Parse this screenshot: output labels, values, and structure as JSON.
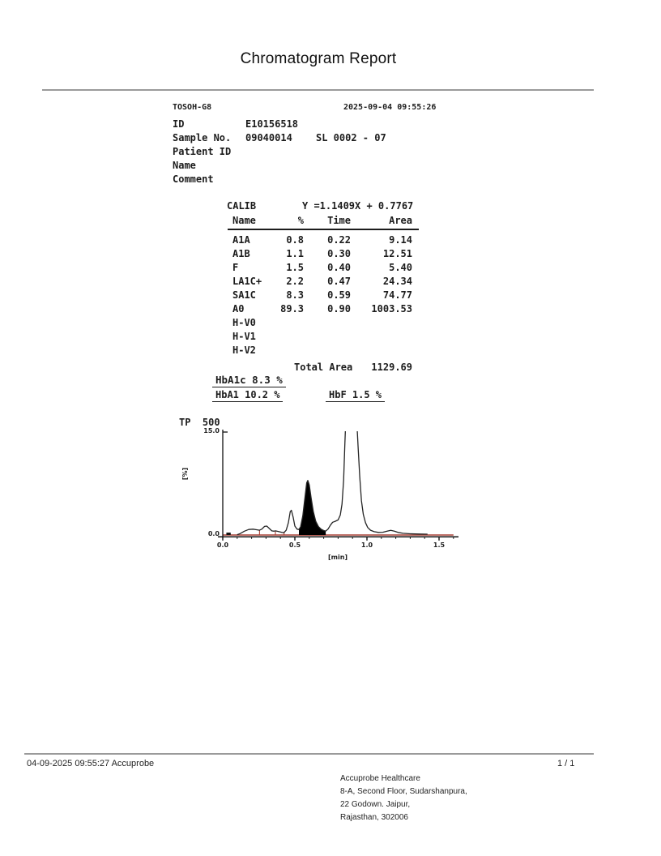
{
  "title": "Chromatogram Report",
  "instrument": {
    "model": "TOSOH-G8",
    "datetime": "2025-09-04 09:55:26",
    "fields": [
      {
        "label": "ID",
        "value": "E10156518",
        "extra": ""
      },
      {
        "label": "Sample No.",
        "value": "09040014",
        "extra": "SL 0002 - 07"
      },
      {
        "label": "Patient ID",
        "value": "",
        "extra": ""
      },
      {
        "label": "Name",
        "value": "",
        "extra": ""
      },
      {
        "label": "Comment",
        "value": "",
        "extra": ""
      }
    ]
  },
  "calib": {
    "label": "CALIB",
    "equation": "Y =1.1409X + 0.7767"
  },
  "table": {
    "headers": {
      "name": "Name",
      "pct": "%",
      "time": "Time",
      "area": "Area"
    },
    "rows": [
      {
        "name": "A1A",
        "pct": "0.8",
        "time": "0.22",
        "area": "9.14"
      },
      {
        "name": "A1B",
        "pct": "1.1",
        "time": "0.30",
        "area": "12.51"
      },
      {
        "name": "F",
        "pct": "1.5",
        "time": "0.40",
        "area": "5.40"
      },
      {
        "name": "LA1C+",
        "pct": "2.2",
        "time": "0.47",
        "area": "24.34"
      },
      {
        "name": "SA1C",
        "pct": "8.3",
        "time": "0.59",
        "area": "74.77"
      },
      {
        "name": "A0",
        "pct": "89.3",
        "time": "0.90",
        "area": "1003.53"
      },
      {
        "name": "H-V0",
        "pct": "",
        "time": "",
        "area": ""
      },
      {
        "name": "H-V1",
        "pct": "",
        "time": "",
        "area": ""
      },
      {
        "name": "H-V2",
        "pct": "",
        "time": "",
        "area": ""
      }
    ],
    "total_label": "Total Area",
    "total_value": "1129.69"
  },
  "results": {
    "hba1c": "HbA1c 8.3 %",
    "hba1": "HbA1 10.2 %",
    "hbf": "HbF 1.5 %"
  },
  "chart_data": {
    "type": "line",
    "title": "TP  500",
    "ylabel": "[%]",
    "xlabel": "[min]",
    "ylim": [
      0,
      15
    ],
    "xlim": [
      0,
      1.6
    ],
    "ymax_label": "15.0",
    "ymin_label": "0.0",
    "xticks": [
      0.0,
      0.5,
      1.0,
      1.5
    ],
    "xtick_labels": [
      "0.0",
      "0.5",
      "1.0",
      "1.5"
    ],
    "minor_xtick_step": 0.1,
    "legend_position": "none",
    "grid": false,
    "trace_color": "#252525",
    "baseline_color": "#a94036",
    "fill_color": "#000000",
    "peaks_annotated": [
      {
        "name": "A1A",
        "time": 0.22,
        "pct": 0.8
      },
      {
        "name": "A1B",
        "time": 0.3,
        "pct": 1.1
      },
      {
        "name": "F",
        "time": 0.4,
        "pct": 1.5
      },
      {
        "name": "LA1C+",
        "time": 0.47,
        "pct": 2.2
      },
      {
        "name": "SA1C",
        "time": 0.59,
        "pct": 8.3,
        "filled": true
      },
      {
        "name": "A0",
        "time": 0.9,
        "pct": 89.3,
        "offscale": true
      }
    ],
    "trace": [
      [
        0.1,
        0.05
      ],
      [
        0.12,
        0.2
      ],
      [
        0.15,
        0.55
      ],
      [
        0.18,
        0.8
      ],
      [
        0.21,
        0.85
      ],
      [
        0.23,
        0.78
      ],
      [
        0.255,
        0.7
      ],
      [
        0.27,
        0.85
      ],
      [
        0.29,
        1.25
      ],
      [
        0.305,
        1.3
      ],
      [
        0.32,
        1.0
      ],
      [
        0.34,
        0.6
      ],
      [
        0.355,
        0.55
      ],
      [
        0.365,
        0.6
      ],
      [
        0.375,
        0.55
      ],
      [
        0.39,
        0.48
      ],
      [
        0.41,
        0.38
      ],
      [
        0.425,
        0.35
      ],
      [
        0.44,
        0.7
      ],
      [
        0.455,
        1.8
      ],
      [
        0.468,
        3.4
      ],
      [
        0.476,
        3.6
      ],
      [
        0.488,
        2.6
      ],
      [
        0.5,
        1.3
      ],
      [
        0.515,
        0.85
      ],
      [
        0.528,
        0.8
      ],
      [
        0.54,
        1.2
      ],
      [
        0.555,
        2.8
      ],
      [
        0.57,
        5.5
      ],
      [
        0.582,
        7.6
      ],
      [
        0.59,
        7.95
      ],
      [
        0.6,
        7.3
      ],
      [
        0.613,
        5.4
      ],
      [
        0.628,
        3.4
      ],
      [
        0.645,
        2.0
      ],
      [
        0.663,
        1.25
      ],
      [
        0.682,
        0.85
      ],
      [
        0.7,
        0.65
      ],
      [
        0.714,
        0.58
      ],
      [
        0.73,
        0.85
      ],
      [
        0.747,
        1.45
      ],
      [
        0.762,
        1.85
      ],
      [
        0.78,
        2.0
      ],
      [
        0.8,
        2.2
      ],
      [
        0.815,
        2.9
      ],
      [
        0.827,
        4.5
      ],
      [
        0.838,
        8.0
      ],
      [
        0.847,
        13.5
      ],
      [
        0.853,
        16.5
      ],
      [
        0.93,
        16.5
      ],
      [
        0.938,
        13.0
      ],
      [
        0.95,
        8.5
      ],
      [
        0.962,
        5.0
      ],
      [
        0.975,
        3.0
      ],
      [
        0.99,
        1.8
      ],
      [
        1.005,
        1.1
      ],
      [
        1.025,
        0.7
      ],
      [
        1.05,
        0.48
      ],
      [
        1.08,
        0.38
      ],
      [
        1.11,
        0.4
      ],
      [
        1.14,
        0.55
      ],
      [
        1.165,
        0.68
      ],
      [
        1.19,
        0.55
      ],
      [
        1.215,
        0.38
      ],
      [
        1.25,
        0.25
      ],
      [
        1.3,
        0.18
      ],
      [
        1.36,
        0.14
      ],
      [
        1.42,
        0.12
      ]
    ],
    "filled_peak_range": [
      0.528,
      0.714
    ],
    "dividers": [
      [
        0.255,
        0.72
      ],
      [
        0.365,
        0.62
      ],
      [
        0.425,
        0.4
      ]
    ],
    "injection_mark": [
      0.025,
      0.055,
      0.35
    ]
  },
  "footer": {
    "left": "04-09-2025 09:55:27  Accuprobe",
    "page": "1 / 1",
    "address": [
      "Accuprobe Healthcare",
      "8-A, Second Floor, Sudarshanpura,",
      "22 Godown. Jaipur,",
      "Rajasthan, 302006"
    ]
  }
}
